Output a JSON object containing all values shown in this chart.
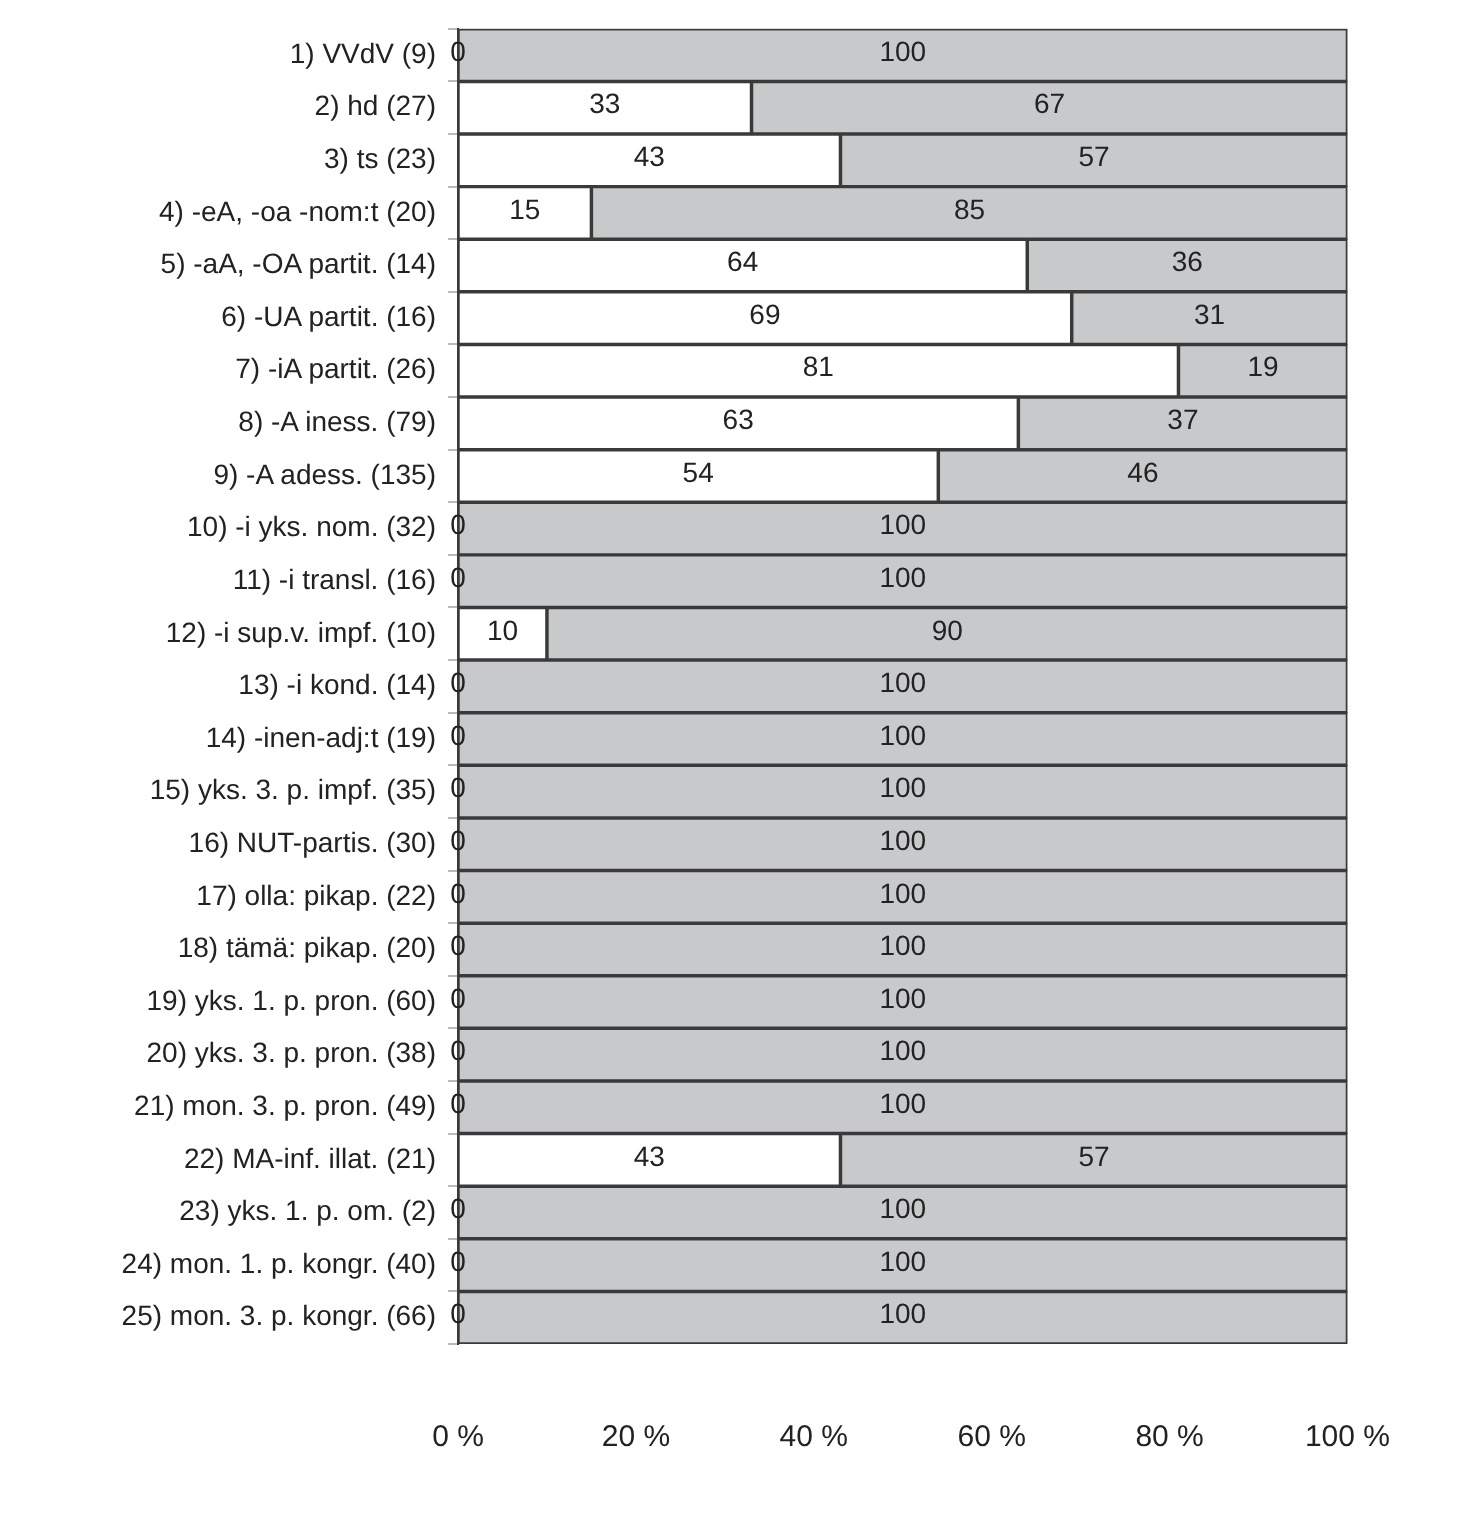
{
  "chart_data": {
    "type": "bar",
    "orientation": "horizontal",
    "stacked": true,
    "categories": [
      "1) VVdV (9)",
      "2) hd (27)",
      "3) ts (23)",
      "4) -eA, -oa -nom:t (20)",
      "5) -aA, -OA partit. (14)",
      "6) -UA partit. (16)",
      "7) -iA partit. (26)",
      "8) -A iness. (79)",
      "9) -A adess. (135)",
      "10) -i yks. nom. (32)",
      "11) -i transl. (16)",
      "12) -i sup.v. impf. (10)",
      "13) -i kond. (14)",
      "14) -inen-adj:t (19)",
      "15) yks. 3. p. impf. (35)",
      "16) NUT-partis. (30)",
      "17) olla: pikap. (22)",
      "18) tämä: pikap. (20)",
      "19) yks. 1. p. pron. (60)",
      "20) yks. 3. p. pron. (38)",
      "21) mon. 3. p. pron. (49)",
      "22) MA-inf. illat. (21)",
      "23) yks. 1. p. om. (2)",
      "24) mon. 1. p. kongr. (40)",
      "25) mon. 3. p. kongr. (66)"
    ],
    "series": [
      {
        "color": "#ffffff",
        "values": [
          0,
          33,
          43,
          15,
          64,
          69,
          81,
          63,
          54,
          0,
          0,
          10,
          0,
          0,
          0,
          0,
          0,
          0,
          0,
          0,
          0,
          43,
          0,
          0,
          0
        ]
      },
      {
        "color": "#c8c9cb",
        "values": [
          100,
          67,
          57,
          85,
          36,
          31,
          19,
          37,
          46,
          100,
          100,
          90,
          100,
          100,
          100,
          100,
          100,
          100,
          100,
          100,
          100,
          57,
          100,
          100,
          100
        ]
      }
    ],
    "xlim": [
      0,
      100
    ],
    "xticks": [
      {
        "value": 0,
        "label": "0 %"
      },
      {
        "value": 20,
        "label": "20 %"
      },
      {
        "value": 40,
        "label": "40 %"
      },
      {
        "value": 60,
        "label": "60 %"
      },
      {
        "value": 80,
        "label": "80 %"
      },
      {
        "value": 100,
        "label": "100 %"
      }
    ],
    "data_labels": true,
    "grid": false,
    "legend": false
  }
}
